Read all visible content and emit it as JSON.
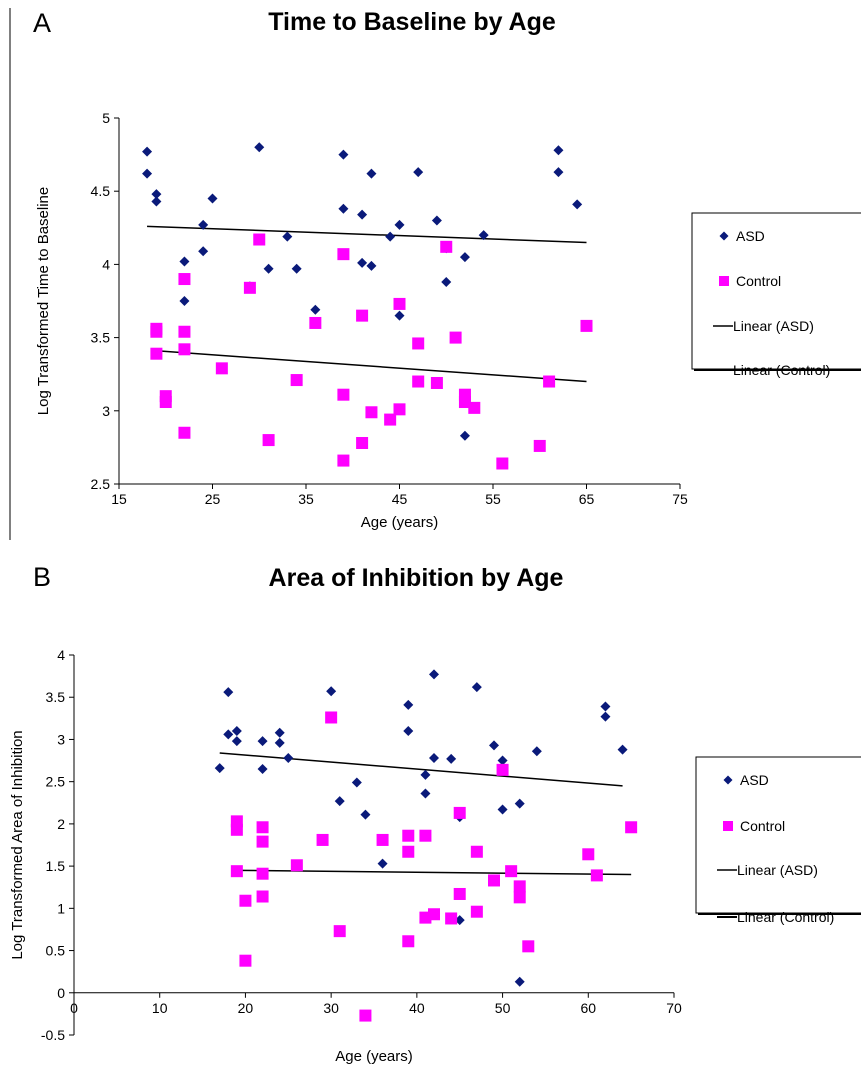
{
  "panels": [
    {
      "letter": "A"
    },
    {
      "letter": "B"
    }
  ],
  "chart_data": [
    {
      "type": "scatter",
      "title": "Time to Baseline by Age",
      "xlabel": "Age (years)",
      "ylabel": "Log Transformed Time to Baseline",
      "xlim": [
        15,
        75
      ],
      "ylim": [
        2.5,
        5
      ],
      "xticks": [
        15,
        25,
        35,
        45,
        55,
        65,
        75
      ],
      "yticks": [
        2.5,
        3,
        3.5,
        4,
        4.5,
        5
      ],
      "ytick_labels": [
        "2.5",
        "3",
        "3.5",
        "4",
        "4.5",
        "5"
      ],
      "grid": false,
      "legend_position": "right",
      "legend": [
        "ASD",
        "Control",
        "Linear (ASD)",
        "Linear (Control)"
      ],
      "series": [
        {
          "name": "ASD",
          "marker": "diamond",
          "color": "#0a1a7a",
          "points": [
            [
              18,
              4.77
            ],
            [
              18,
              4.62
            ],
            [
              19,
              4.48
            ],
            [
              19,
              4.43
            ],
            [
              22,
              4.02
            ],
            [
              22,
              3.75
            ],
            [
              24,
              4.27
            ],
            [
              24,
              4.09
            ],
            [
              25,
              4.45
            ],
            [
              29,
              3.85
            ],
            [
              30,
              4.8
            ],
            [
              31,
              3.97
            ],
            [
              33,
              4.19
            ],
            [
              34,
              3.97
            ],
            [
              36,
              3.69
            ],
            [
              39,
              4.75
            ],
            [
              39,
              4.38
            ],
            [
              41,
              4.34
            ],
            [
              41,
              4.01
            ],
            [
              42,
              4.62
            ],
            [
              42,
              3.99
            ],
            [
              44,
              4.19
            ],
            [
              45,
              4.27
            ],
            [
              45,
              3.65
            ],
            [
              47,
              4.63
            ],
            [
              49,
              4.3
            ],
            [
              50,
              4.11
            ],
            [
              50,
              3.88
            ],
            [
              52,
              4.05
            ],
            [
              52,
              2.83
            ],
            [
              54,
              4.2
            ],
            [
              62,
              4.78
            ],
            [
              62,
              4.63
            ],
            [
              64,
              4.41
            ]
          ]
        },
        {
          "name": "Control",
          "marker": "square",
          "color": "#ff00ff",
          "points": [
            [
              19,
              3.56
            ],
            [
              19,
              3.54
            ],
            [
              19,
              3.39
            ],
            [
              20,
              3.1
            ],
            [
              20,
              3.06
            ],
            [
              22,
              3.9
            ],
            [
              22,
              3.54
            ],
            [
              22,
              3.42
            ],
            [
              22,
              2.85
            ],
            [
              26,
              3.29
            ],
            [
              29,
              3.84
            ],
            [
              30,
              4.17
            ],
            [
              31,
              2.8
            ],
            [
              34,
              3.21
            ],
            [
              36,
              3.6
            ],
            [
              39,
              4.07
            ],
            [
              39,
              3.11
            ],
            [
              39,
              2.66
            ],
            [
              41,
              3.65
            ],
            [
              41,
              2.78
            ],
            [
              42,
              2.99
            ],
            [
              44,
              2.94
            ],
            [
              45,
              3.73
            ],
            [
              45,
              3.01
            ],
            [
              47,
              3.46
            ],
            [
              47,
              3.2
            ],
            [
              49,
              3.19
            ],
            [
              50,
              4.12
            ],
            [
              51,
              3.5
            ],
            [
              52,
              3.11
            ],
            [
              52,
              3.06
            ],
            [
              53,
              3.02
            ],
            [
              56,
              2.64
            ],
            [
              60,
              2.76
            ],
            [
              61,
              3.2
            ],
            [
              65,
              3.58
            ]
          ]
        }
      ],
      "trendlines": [
        {
          "name": "Linear (ASD)",
          "color": "#000000",
          "points": [
            [
              18,
              4.26
            ],
            [
              65,
              4.15
            ]
          ]
        },
        {
          "name": "Linear (Control)",
          "color": "#000000",
          "points": [
            [
              19,
              3.41
            ],
            [
              65,
              3.2
            ]
          ]
        }
      ]
    },
    {
      "type": "scatter",
      "title": "Area of Inhibition by Age",
      "xlabel": "Age (years)",
      "ylabel": "Log Transformed Area of Inhibition",
      "xlim": [
        0,
        70
      ],
      "ylim": [
        -0.5,
        4
      ],
      "xticks": [
        0,
        10,
        20,
        30,
        40,
        50,
        60,
        70
      ],
      "yticks": [
        -0.5,
        0,
        0.5,
        1,
        1.5,
        2,
        2.5,
        3,
        3.5,
        4
      ],
      "ytick_labels": [
        "-0.5",
        "0",
        "0.5",
        "1",
        "1.5",
        "2",
        "2.5",
        "3",
        "3.5",
        "4"
      ],
      "grid": false,
      "legend_position": "right",
      "legend": [
        "ASD",
        "Control",
        "Linear (ASD)",
        "Linear (Control)"
      ],
      "series": [
        {
          "name": "ASD",
          "marker": "diamond",
          "color": "#0a1a7a",
          "points": [
            [
              17,
              2.66
            ],
            [
              18,
              3.56
            ],
            [
              18,
              3.06
            ],
            [
              19,
              3.1
            ],
            [
              19,
              2.98
            ],
            [
              22,
              2.98
            ],
            [
              22,
              2.65
            ],
            [
              24,
              3.08
            ],
            [
              24,
              2.96
            ],
            [
              25,
              2.78
            ],
            [
              30,
              3.57
            ],
            [
              31,
              2.27
            ],
            [
              33,
              2.49
            ],
            [
              34,
              2.11
            ],
            [
              36,
              1.53
            ],
            [
              39,
              3.41
            ],
            [
              39,
              3.1
            ],
            [
              41,
              2.58
            ],
            [
              41,
              2.36
            ],
            [
              42,
              3.77
            ],
            [
              42,
              2.78
            ],
            [
              44,
              2.77
            ],
            [
              45,
              2.08
            ],
            [
              45,
              0.86
            ],
            [
              47,
              3.62
            ],
            [
              49,
              2.93
            ],
            [
              50,
              2.75
            ],
            [
              50,
              2.17
            ],
            [
              52,
              2.24
            ],
            [
              52,
              0.13
            ],
            [
              54,
              2.86
            ],
            [
              62,
              3.39
            ],
            [
              62,
              3.27
            ],
            [
              64,
              2.88
            ]
          ]
        },
        {
          "name": "Control",
          "marker": "square",
          "color": "#ff00ff",
          "points": [
            [
              19,
              2.03
            ],
            [
              19,
              1.93
            ],
            [
              19,
              1.44
            ],
            [
              20,
              1.09
            ],
            [
              20,
              0.38
            ],
            [
              22,
              1.96
            ],
            [
              22,
              1.79
            ],
            [
              22,
              1.41
            ],
            [
              22,
              1.14
            ],
            [
              26,
              1.51
            ],
            [
              29,
              1.81
            ],
            [
              30,
              3.26
            ],
            [
              31,
              0.73
            ],
            [
              34,
              -0.27
            ],
            [
              36,
              1.81
            ],
            [
              39,
              1.86
            ],
            [
              39,
              1.67
            ],
            [
              39,
              0.61
            ],
            [
              41,
              1.86
            ],
            [
              41,
              0.89
            ],
            [
              42,
              0.93
            ],
            [
              44,
              0.88
            ],
            [
              45,
              2.13
            ],
            [
              45,
              1.17
            ],
            [
              47,
              1.67
            ],
            [
              47,
              0.96
            ],
            [
              49,
              1.33
            ],
            [
              50,
              2.64
            ],
            [
              51,
              1.44
            ],
            [
              52,
              1.26
            ],
            [
              52,
              1.13
            ],
            [
              53,
              0.55
            ],
            [
              60,
              1.64
            ],
            [
              61,
              1.39
            ],
            [
              65,
              1.96
            ]
          ]
        }
      ],
      "trendlines": [
        {
          "name": "Linear (ASD)",
          "color": "#000000",
          "points": [
            [
              17,
              2.84
            ],
            [
              64,
              2.45
            ]
          ]
        },
        {
          "name": "Linear (Control)",
          "color": "#000000",
          "points": [
            [
              19,
              1.45
            ],
            [
              65,
              1.4
            ]
          ]
        }
      ]
    }
  ]
}
